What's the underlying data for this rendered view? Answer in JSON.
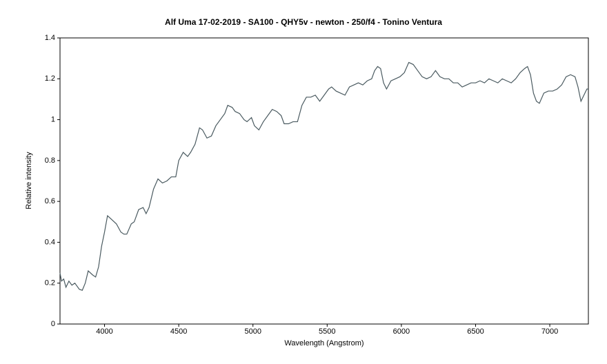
{
  "chart_data": {
    "type": "line",
    "title": "Alf Uma 17-02-2019 - SA100 - QHY5v - newton - 250/f4 - Tonino Ventura",
    "x_label": "Wavelength (Angstrom)",
    "y_label": "Relative intensity",
    "x": [
      3700,
      3710,
      3725,
      3740,
      3760,
      3780,
      3800,
      3830,
      3850,
      3870,
      3890,
      3920,
      3940,
      3960,
      3980,
      4000,
      4020,
      4050,
      4080,
      4110,
      4130,
      4150,
      4180,
      4200,
      4230,
      4260,
      4280,
      4300,
      4330,
      4360,
      4390,
      4420,
      4450,
      4480,
      4500,
      4530,
      4560,
      4580,
      4610,
      4640,
      4660,
      4690,
      4720,
      4750,
      4780,
      4810,
      4830,
      4860,
      4880,
      4910,
      4940,
      4960,
      4990,
      5010,
      5040,
      5070,
      5100,
      5130,
      5160,
      5190,
      5210,
      5240,
      5270,
      5300,
      5330,
      5360,
      5390,
      5420,
      5450,
      5480,
      5510,
      5530,
      5560,
      5590,
      5620,
      5650,
      5680,
      5710,
      5740,
      5770,
      5800,
      5820,
      5840,
      5860,
      5880,
      5900,
      5930,
      5960,
      5990,
      6020,
      6050,
      6080,
      6110,
      6140,
      6170,
      6200,
      6230,
      6260,
      6290,
      6320,
      6350,
      6380,
      6410,
      6440,
      6470,
      6500,
      6530,
      6560,
      6590,
      6620,
      6650,
      6680,
      6710,
      6740,
      6770,
      6800,
      6830,
      6850,
      6870,
      6890,
      6910,
      6930,
      6960,
      6990,
      7020,
      7050,
      7080,
      7110,
      7140,
      7170,
      7190,
      7210,
      7230,
      7250,
      7260
    ],
    "series": [
      {
        "name": "Alf Uma",
        "color": "#4a5a60",
        "values": [
          0.25,
          0.21,
          0.22,
          0.18,
          0.21,
          0.19,
          0.2,
          0.17,
          0.165,
          0.2,
          0.26,
          0.24,
          0.23,
          0.28,
          0.38,
          0.45,
          0.53,
          0.51,
          0.49,
          0.45,
          0.44,
          0.44,
          0.49,
          0.5,
          0.56,
          0.57,
          0.54,
          0.57,
          0.66,
          0.71,
          0.69,
          0.7,
          0.72,
          0.72,
          0.8,
          0.84,
          0.82,
          0.84,
          0.88,
          0.96,
          0.95,
          0.91,
          0.92,
          0.97,
          1.0,
          1.03,
          1.07,
          1.06,
          1.04,
          1.03,
          1.0,
          0.99,
          1.01,
          0.97,
          0.95,
          0.99,
          1.02,
          1.05,
          1.04,
          1.02,
          0.98,
          0.98,
          0.99,
          0.99,
          1.07,
          1.11,
          1.11,
          1.12,
          1.09,
          1.12,
          1.15,
          1.16,
          1.14,
          1.13,
          1.12,
          1.16,
          1.17,
          1.18,
          1.17,
          1.19,
          1.2,
          1.24,
          1.26,
          1.25,
          1.18,
          1.15,
          1.19,
          1.2,
          1.21,
          1.23,
          1.28,
          1.27,
          1.24,
          1.21,
          1.2,
          1.21,
          1.24,
          1.21,
          1.2,
          1.2,
          1.18,
          1.18,
          1.16,
          1.17,
          1.18,
          1.18,
          1.19,
          1.18,
          1.2,
          1.19,
          1.18,
          1.2,
          1.19,
          1.18,
          1.2,
          1.23,
          1.25,
          1.26,
          1.22,
          1.13,
          1.09,
          1.08,
          1.13,
          1.14,
          1.14,
          1.15,
          1.17,
          1.21,
          1.22,
          1.21,
          1.16,
          1.09,
          1.12,
          1.15,
          1.15
        ]
      }
    ],
    "xlim": [
      3700,
      7260
    ],
    "ylim": [
      0,
      1.4
    ],
    "xticks": [
      4000,
      4500,
      5000,
      5500,
      6000,
      6500,
      7000
    ],
    "yticks": [
      0,
      0.2,
      0.4,
      0.6,
      0.8,
      1,
      1.2,
      1.4
    ],
    "grid": false
  }
}
